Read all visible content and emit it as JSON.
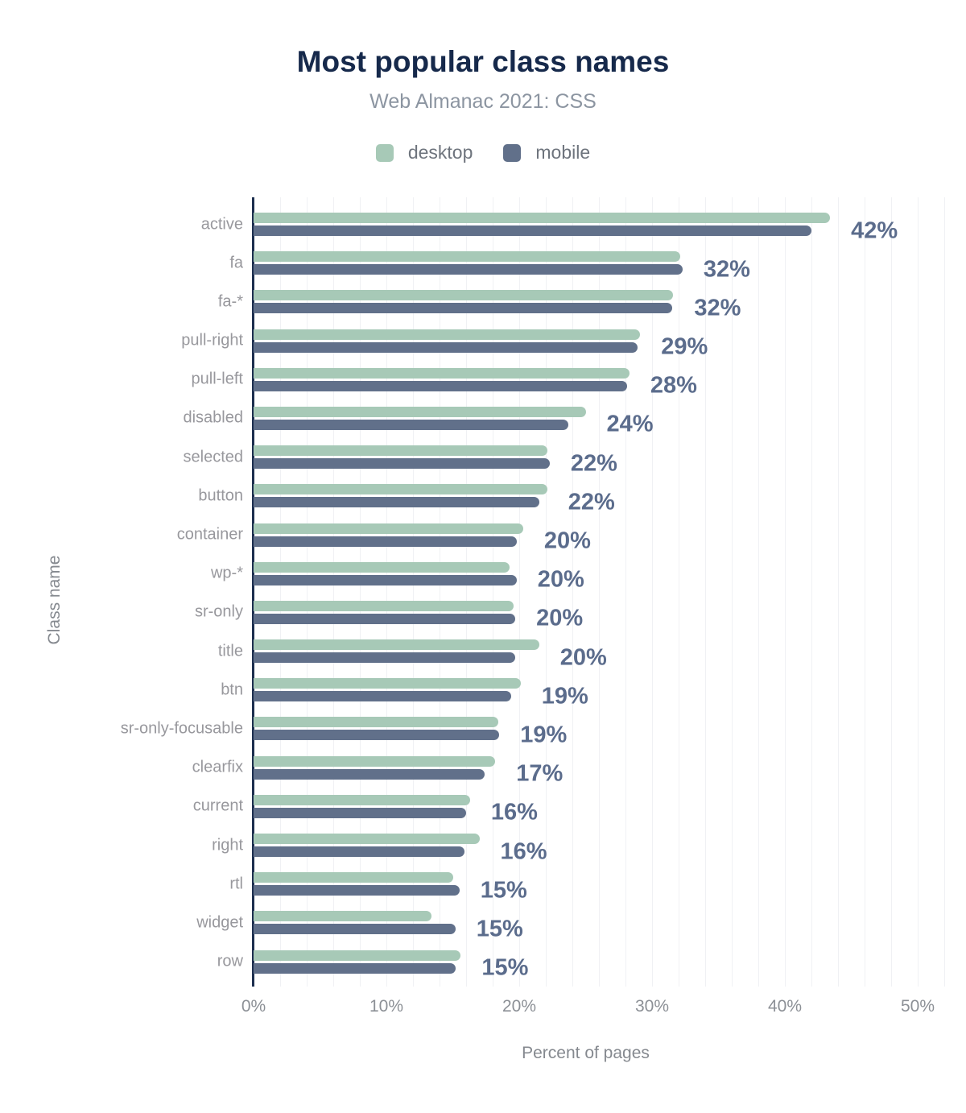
{
  "header": {
    "title": "Most popular class names",
    "subtitle": "Web Almanac 2021: CSS"
  },
  "colors": {
    "title": "#16294b",
    "subtitle": "#8c95a1",
    "desktop_bar": "#a7c9b7",
    "mobile_bar": "#61708a",
    "data_label": "#5b6c8c",
    "category_label": "#98989d",
    "tick_label": "#8c9096",
    "axis_title": "#85898f",
    "axis_line": "#1d2f4f",
    "gridline": "#f0f1f4"
  },
  "chart_data": {
    "type": "bar",
    "orientation": "horizontal",
    "title": "Most popular class names",
    "subtitle": "Web Almanac 2021: CSS",
    "xlabel": "Percent of pages",
    "ylabel": "Class name",
    "xlim": [
      0,
      50
    ],
    "x_ticks": [
      "0%",
      "10%",
      "20%",
      "30%",
      "40%",
      "50%"
    ],
    "grid": "vertical minor gridlines every 2%",
    "legend_position": "top",
    "categories": [
      "active",
      "fa",
      "fa-*",
      "pull-right",
      "pull-left",
      "disabled",
      "selected",
      "button",
      "container",
      "wp-*",
      "sr-only",
      "title",
      "btn",
      "sr-only-focusable",
      "clearfix",
      "current",
      "right",
      "rtl",
      "widget",
      "row"
    ],
    "series": [
      {
        "name": "desktop",
        "color": "#a7c9b7",
        "values": [
          43.4,
          32.1,
          31.6,
          29.1,
          28.3,
          25.0,
          22.1,
          22.1,
          20.3,
          19.3,
          19.6,
          21.5,
          20.1,
          18.4,
          18.2,
          16.3,
          17.0,
          15.0,
          13.4,
          15.6
        ]
      },
      {
        "name": "mobile",
        "color": "#61708a",
        "values": [
          42.0,
          32.3,
          31.5,
          28.9,
          28.1,
          23.7,
          22.3,
          21.5,
          19.8,
          19.8,
          19.7,
          19.7,
          19.4,
          18.5,
          17.4,
          16.0,
          15.9,
          15.5,
          15.2,
          15.2
        ]
      }
    ],
    "data_labels": [
      "42%",
      "32%",
      "32%",
      "29%",
      "28%",
      "24%",
      "22%",
      "22%",
      "20%",
      "20%",
      "20%",
      "20%",
      "19%",
      "19%",
      "17%",
      "16%",
      "16%",
      "15%",
      "15%",
      "15%"
    ]
  },
  "legend": [
    {
      "label": "desktop"
    },
    {
      "label": "mobile"
    }
  ]
}
